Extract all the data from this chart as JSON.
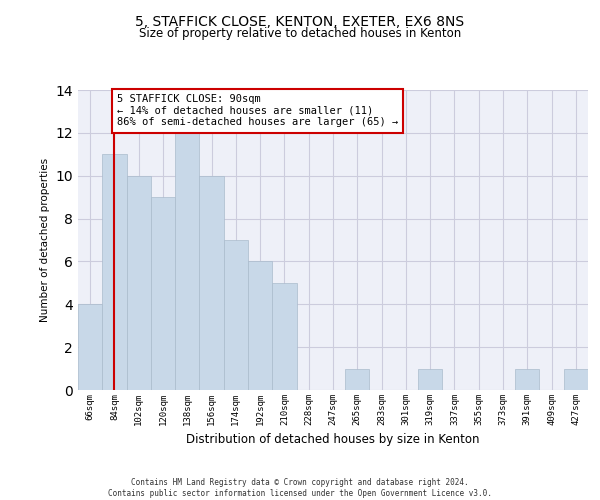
{
  "title1": "5, STAFFICK CLOSE, KENTON, EXETER, EX6 8NS",
  "title2": "Size of property relative to detached houses in Kenton",
  "xlabel": "Distribution of detached houses by size in Kenton",
  "ylabel": "Number of detached properties",
  "categories": [
    "66sqm",
    "84sqm",
    "102sqm",
    "120sqm",
    "138sqm",
    "156sqm",
    "174sqm",
    "192sqm",
    "210sqm",
    "228sqm",
    "247sqm",
    "265sqm",
    "283sqm",
    "301sqm",
    "319sqm",
    "337sqm",
    "355sqm",
    "373sqm",
    "391sqm",
    "409sqm",
    "427sqm"
  ],
  "values": [
    4,
    11,
    10,
    9,
    12,
    10,
    7,
    6,
    5,
    0,
    0,
    1,
    0,
    0,
    1,
    0,
    0,
    0,
    1,
    0,
    1
  ],
  "bar_color": "#c8d8e8",
  "bar_edge_color": "#aabbcc",
  "grid_color": "#ccccdd",
  "background_color": "#eef0f8",
  "vline_x": 1,
  "vline_color": "#cc0000",
  "annotation_text": "5 STAFFICK CLOSE: 90sqm\n← 14% of detached houses are smaller (11)\n86% of semi-detached houses are larger (65) →",
  "annotation_box_color": "#ffffff",
  "annotation_box_edge": "#cc0000",
  "ylim": [
    0,
    14
  ],
  "yticks": [
    0,
    2,
    4,
    6,
    8,
    10,
    12,
    14
  ],
  "footer1": "Contains HM Land Registry data © Crown copyright and database right 2024.",
  "footer2": "Contains public sector information licensed under the Open Government Licence v3.0."
}
